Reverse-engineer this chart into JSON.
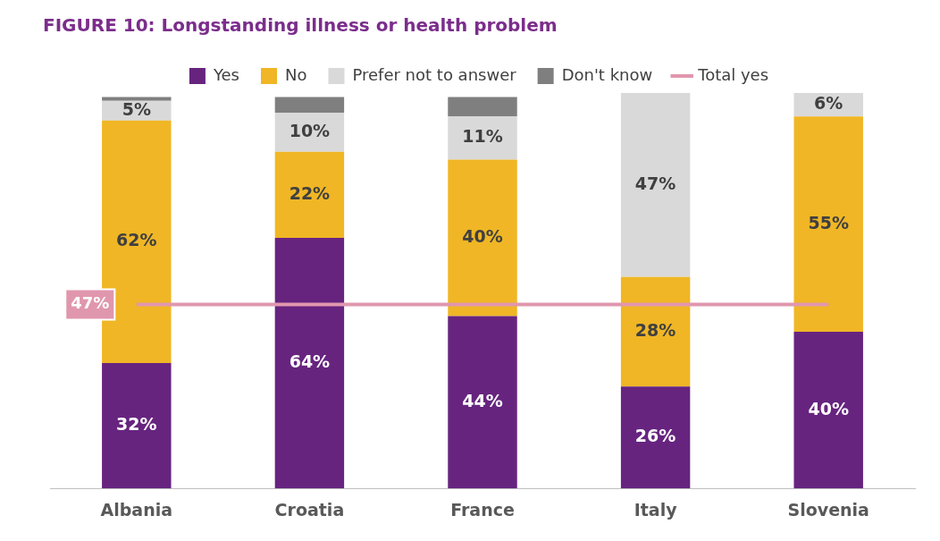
{
  "chart_data": {
    "type": "bar",
    "title": "FIGURE 10: Longstanding illness or health problem",
    "categories": [
      "Albania",
      "Croatia",
      "France",
      "Italy",
      "Slovenia"
    ],
    "stacked": true,
    "ylim": [
      0,
      101
    ],
    "tick_labels": "x",
    "grid": false,
    "legend": "top",
    "series": [
      {
        "name": "Yes",
        "color": "#66247f",
        "values": [
          32,
          64,
          44,
          26,
          40
        ],
        "value_labels": [
          "32%",
          "64%",
          "44%",
          "26%",
          "40%"
        ]
      },
      {
        "name": "No",
        "color": "#f0b625",
        "values": [
          62,
          22,
          40,
          28,
          55
        ],
        "value_labels": [
          "62%",
          "22%",
          "40%",
          "28%",
          "55%"
        ]
      },
      {
        "name": "Prefer not to answer",
        "color": "#d9d9d9",
        "values": [
          5,
          10,
          11,
          47,
          6
        ],
        "value_labels": [
          "5%",
          "10%",
          "11%",
          "47%",
          "6%"
        ]
      },
      {
        "name": "Don't know",
        "color": "#7f7f7f",
        "values": [
          1,
          4,
          5,
          0,
          0
        ],
        "value_labels": [
          null,
          null,
          null,
          null,
          null
        ]
      },
      {
        "name": "Total yes",
        "type": "line",
        "color": "#e097ae",
        "marker": "none",
        "values": [
          47,
          47,
          47,
          47,
          47
        ]
      }
    ],
    "annotations": [
      {
        "text": "47%",
        "x": "Albania",
        "y": 47
      }
    ]
  }
}
